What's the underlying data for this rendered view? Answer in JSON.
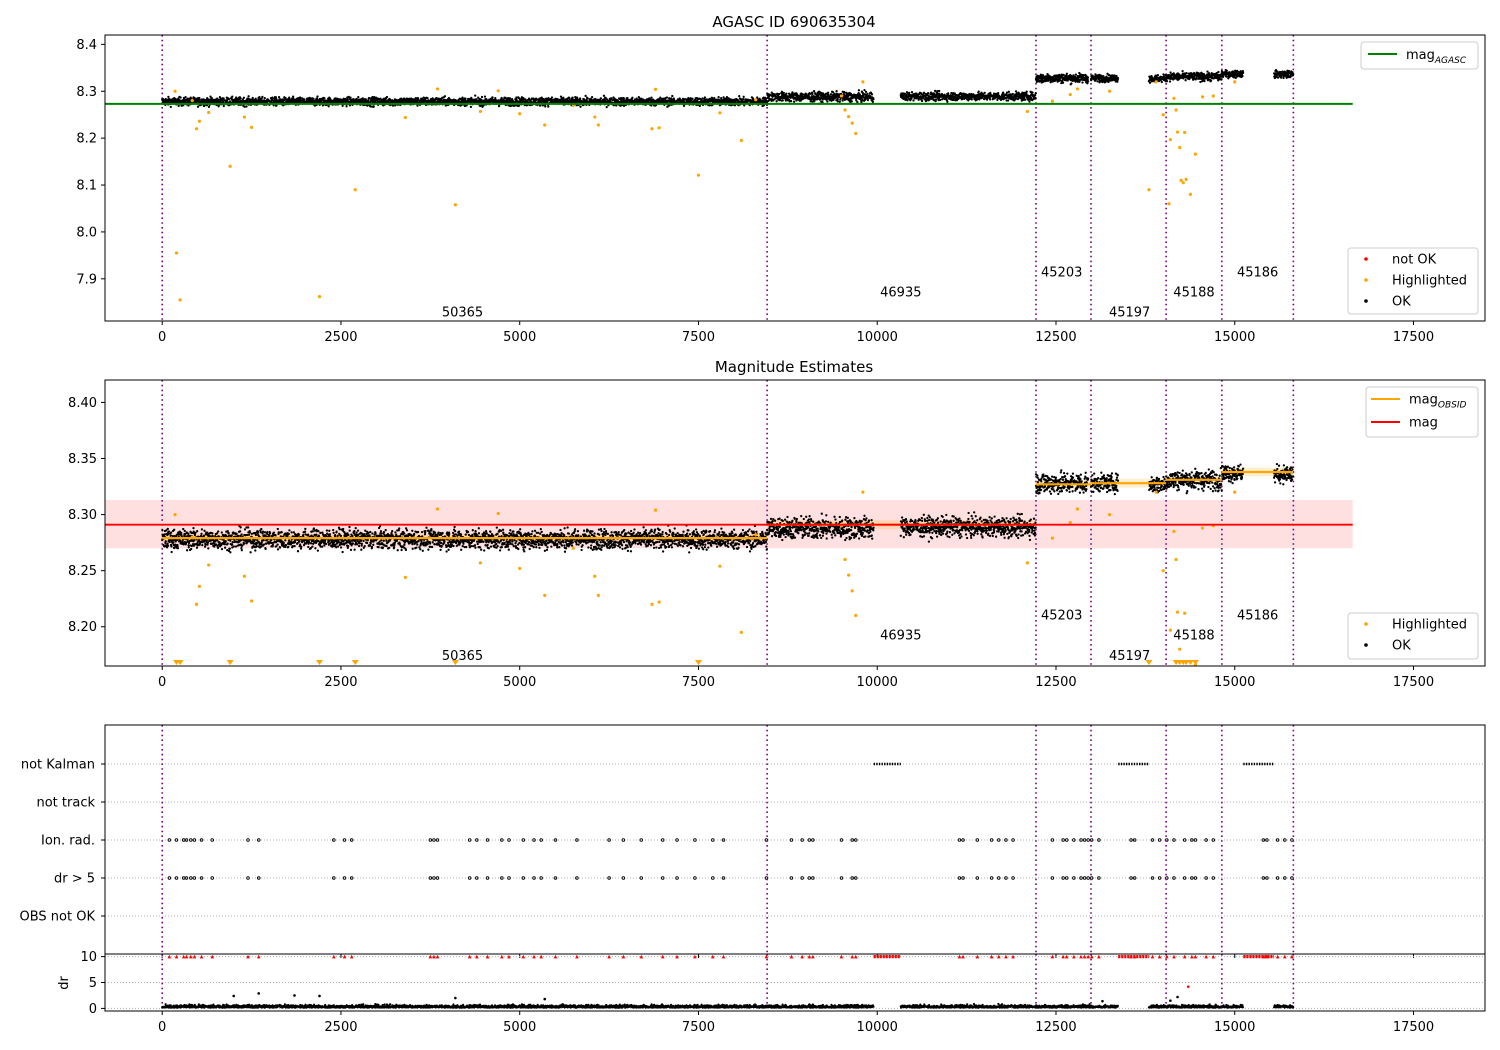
{
  "chart_data": [
    {
      "type": "scatter",
      "title": "AGASC ID 690635304",
      "xlabel": "",
      "ylabel": "",
      "xlim": [
        -800,
        18500
      ],
      "ylim": [
        7.81,
        8.42
      ],
      "xticks": [
        0,
        2500,
        5000,
        7500,
        10000,
        12500,
        15000,
        17500
      ],
      "xtick_labels": [
        "0",
        "2500",
        "5000",
        "7500",
        "10000",
        "12500",
        "15000",
        "17500"
      ],
      "yticks": [
        7.9,
        8.0,
        8.1,
        8.2,
        8.3,
        8.4
      ],
      "ytick_labels": [
        "7.9",
        "8.0",
        "8.1",
        "8.2",
        "8.3",
        "8.4"
      ],
      "vlines": [
        0,
        8460,
        12220,
        12990,
        14040,
        14820,
        15820
      ],
      "obsid_labels": [
        {
          "text": "50365",
          "x": 4200,
          "y": 7.83
        },
        {
          "text": "46935",
          "x": 10330,
          "y": 7.873
        },
        {
          "text": "45203",
          "x": 12580,
          "y": 7.916
        },
        {
          "text": "45197",
          "x": 13530,
          "y": 7.83
        },
        {
          "text": "45188",
          "x": 14430,
          "y": 7.873
        },
        {
          "text": "45186",
          "x": 15320,
          "y": 7.916
        }
      ],
      "segments": [
        {
          "x0": 0,
          "x1": 8460,
          "level": 8.278,
          "spread": 0.008
        },
        {
          "x0": 8460,
          "x1": 9950,
          "level": 8.288,
          "spread": 0.009
        },
        {
          "x0": 10330,
          "x1": 12220,
          "level": 8.289,
          "spread": 0.008
        },
        {
          "x0": 12220,
          "x1": 12950,
          "level": 8.328,
          "spread": 0.009
        },
        {
          "x0": 12990,
          "x1": 13370,
          "level": 8.328,
          "spread": 0.007
        },
        {
          "x0": 13800,
          "x1": 14040,
          "level": 8.327,
          "spread": 0.007
        },
        {
          "x0": 14040,
          "x1": 14820,
          "level": 8.331,
          "spread": 0.008
        },
        {
          "x0": 14820,
          "x1": 15120,
          "level": 8.337,
          "spread": 0.007
        },
        {
          "x0": 15550,
          "x1": 15820,
          "level": 8.336,
          "spread": 0.007
        }
      ],
      "highlighted_points": [
        [
          180,
          8.3
        ],
        [
          200,
          7.955
        ],
        [
          250,
          7.855
        ],
        [
          420,
          8.28
        ],
        [
          480,
          8.22
        ],
        [
          520,
          8.236
        ],
        [
          650,
          8.255
        ],
        [
          950,
          8.14
        ],
        [
          1150,
          8.245
        ],
        [
          1250,
          8.223
        ],
        [
          2200,
          7.862
        ],
        [
          2700,
          8.09
        ],
        [
          3400,
          8.244
        ],
        [
          3850,
          8.305
        ],
        [
          4100,
          8.058
        ],
        [
          4450,
          8.257
        ],
        [
          4700,
          8.301
        ],
        [
          5000,
          8.252
        ],
        [
          5350,
          8.228
        ],
        [
          5750,
          8.27
        ],
        [
          6050,
          8.245
        ],
        [
          6100,
          8.228
        ],
        [
          6850,
          8.22
        ],
        [
          6950,
          8.222
        ],
        [
          6900,
          8.304
        ],
        [
          7500,
          8.121
        ],
        [
          7800,
          8.254
        ],
        [
          8100,
          8.195
        ],
        [
          8300,
          8.282
        ],
        [
          9500,
          8.29
        ],
        [
          9550,
          8.26
        ],
        [
          9600,
          8.246
        ],
        [
          9650,
          8.232
        ],
        [
          9700,
          8.21
        ],
        [
          9800,
          8.32
        ],
        [
          12100,
          8.257
        ],
        [
          12450,
          8.279
        ],
        [
          12700,
          8.293
        ],
        [
          12800,
          8.305
        ],
        [
          13250,
          8.3
        ],
        [
          13800,
          8.09
        ],
        [
          13900,
          8.32
        ],
        [
          14000,
          8.25
        ],
        [
          14080,
          8.06
        ],
        [
          14100,
          8.197
        ],
        [
          14150,
          8.285
        ],
        [
          14180,
          8.26
        ],
        [
          14200,
          8.213
        ],
        [
          14230,
          8.18
        ],
        [
          14250,
          8.11
        ],
        [
          14280,
          8.105
        ],
        [
          14300,
          8.212
        ],
        [
          14320,
          8.112
        ],
        [
          14380,
          8.08
        ],
        [
          14450,
          8.166
        ],
        [
          14550,
          8.288
        ],
        [
          14700,
          8.29
        ],
        [
          15000,
          8.32
        ]
      ],
      "legend": {
        "line_entries": [
          {
            "label": "mag",
            "subscript": "AGASC",
            "color": "#008000"
          }
        ],
        "point_entries": [
          {
            "label": "not OK",
            "color": "#ff0000"
          },
          {
            "label": "Highlighted",
            "color": "#ffa500"
          },
          {
            "label": "OK",
            "color": "#000000"
          }
        ]
      },
      "reference_line": {
        "name": "mag",
        "value": 8.273,
        "x0": -800,
        "x1": 16650,
        "color": "#008000"
      }
    },
    {
      "type": "scatter",
      "title": "Magnitude Estimates",
      "xlabel": "",
      "ylabel": "",
      "xlim": [
        -800,
        18500
      ],
      "ylim": [
        8.165,
        8.42
      ],
      "xticks": [
        0,
        2500,
        5000,
        7500,
        10000,
        12500,
        15000,
        17500
      ],
      "xtick_labels": [
        "0",
        "2500",
        "5000",
        "7500",
        "10000",
        "12500",
        "15000",
        "17500"
      ],
      "yticks": [
        8.2,
        8.25,
        8.3,
        8.35,
        8.4
      ],
      "ytick_labels": [
        "8.20",
        "8.25",
        "8.30",
        "8.35",
        "8.40"
      ],
      "vlines": [
        0,
        8460,
        12220,
        12990,
        14040,
        14820,
        15820
      ],
      "obsid_labels": [
        {
          "text": "50365",
          "x": 4200,
          "y": 8.175
        },
        {
          "text": "46935",
          "x": 10330,
          "y": 8.193
        },
        {
          "text": "45203",
          "x": 12580,
          "y": 8.211
        },
        {
          "text": "45197",
          "x": 13530,
          "y": 8.175
        },
        {
          "text": "45188",
          "x": 14430,
          "y": 8.193
        },
        {
          "text": "45186",
          "x": 15320,
          "y": 8.211
        }
      ],
      "mag_band": {
        "center": 8.291,
        "low": 8.27,
        "high": 8.313,
        "x0": -800,
        "x1": 16650
      },
      "obsid_levels": [
        {
          "x0": 0,
          "x1": 8460,
          "level": 8.279
        },
        {
          "x0": 8460,
          "x1": 12220,
          "level": 8.291
        },
        {
          "x0": 12220,
          "x1": 12990,
          "level": 8.327
        },
        {
          "x0": 12990,
          "x1": 14040,
          "level": 8.328
        },
        {
          "x0": 14040,
          "x1": 14820,
          "level": 8.331
        },
        {
          "x0": 14820,
          "x1": 15820,
          "level": 8.338
        }
      ],
      "offscale_markers_x": [
        200,
        250,
        950,
        2200,
        2700,
        4100,
        7500,
        13800,
        14180,
        14230,
        14280,
        14320,
        14380,
        14450
      ],
      "legend": {
        "line_entries": [
          {
            "label": "mag",
            "subscript": "OBSID",
            "color": "#ffa500"
          },
          {
            "label": "mag",
            "subscript": "",
            "color": "#ff0000"
          }
        ],
        "point_entries": [
          {
            "label": "Highlighted",
            "color": "#ffa500"
          },
          {
            "label": "OK",
            "color": "#000000"
          }
        ]
      }
    },
    {
      "type": "scatter",
      "title": "",
      "xlabel": "",
      "ylabel": "",
      "xlim": [
        -800,
        18500
      ],
      "flag_rows": [
        "not Kalman",
        "not track",
        "Ion. rad.",
        "dr > 5",
        "OBS not OK"
      ],
      "flag_points": {
        "not Kalman": [
          [
            9950,
            10330
          ],
          [
            13370,
            13800
          ],
          [
            15120,
            15550
          ]
        ],
        "not track": [],
        "Ion. rad.": [
          100,
          200,
          300,
          340,
          400,
          450,
          550,
          700,
          1200,
          1350,
          2400,
          2550,
          2650,
          3750,
          3800,
          3850,
          4300,
          4400,
          4550,
          4750,
          4850,
          5050,
          5200,
          5300,
          5500,
          5800,
          6250,
          6450,
          6700,
          7000,
          7200,
          7450,
          7700,
          7850,
          8450,
          8800,
          8950,
          9050,
          9100,
          9500,
          9650,
          9700,
          11150,
          11200,
          11400,
          11600,
          11700,
          11800,
          11900,
          12450,
          12600,
          12650,
          12750,
          12850,
          12900,
          12950,
          13000,
          13100,
          13550,
          13600,
          13850,
          13950,
          14050,
          14150,
          14300,
          14400,
          14450,
          14600,
          14700,
          15400,
          15450,
          15600,
          15700,
          15800
        ],
        "dr > 5": [
          100,
          200,
          300,
          340,
          400,
          450,
          550,
          700,
          1200,
          1350,
          2400,
          2550,
          2650,
          3750,
          3800,
          3850,
          4300,
          4400,
          4550,
          4750,
          4850,
          5050,
          5200,
          5300,
          5500,
          5800,
          6250,
          6450,
          6700,
          7000,
          7200,
          7450,
          7700,
          7850,
          8450,
          8800,
          8950,
          9050,
          9100,
          9500,
          9650,
          9700,
          11150,
          11200,
          11400,
          11600,
          11700,
          11800,
          11900,
          12450,
          12600,
          12650,
          12750,
          12850,
          12900,
          12950,
          13000,
          13100,
          13550,
          13600,
          13850,
          13950,
          14050,
          14150,
          14300,
          14400,
          14450,
          14600,
          14700,
          15400,
          15450,
          15600,
          15700,
          15800
        ],
        "OBS not OK": []
      }
    },
    {
      "type": "scatter",
      "title": "",
      "xlabel": "",
      "ylabel": "dr",
      "xlim": [
        -800,
        18500
      ],
      "ylim": [
        -0.5,
        10.5
      ],
      "xticks": [
        0,
        2500,
        5000,
        7500,
        10000,
        12500,
        15000,
        17500
      ],
      "xtick_labels": [
        "0",
        "2500",
        "5000",
        "7500",
        "10000",
        "12500",
        "15000",
        "17500"
      ],
      "yticks": [
        0,
        5,
        10
      ],
      "ytick_labels": [
        "0",
        "5",
        "10"
      ],
      "vlines": [
        0,
        8460,
        12220,
        12990,
        14040,
        14820,
        15820
      ],
      "dr_segments": [
        [
          0,
          9950
        ],
        [
          10330,
          13370
        ],
        [
          13800,
          15120
        ],
        [
          15550,
          15820
        ]
      ],
      "dr_outliers": [
        [
          1000,
          2.4
        ],
        [
          1350,
          2.9
        ],
        [
          1850,
          2.5
        ],
        [
          2200,
          2.4
        ],
        [
          4100,
          2.0
        ],
        [
          5350,
          1.8
        ],
        [
          14100,
          1.5
        ],
        [
          14200,
          2.2
        ],
        [
          14350,
          4.2
        ],
        [
          13150,
          1.4
        ]
      ],
      "capped_x": [
        100,
        200,
        300,
        340,
        400,
        450,
        550,
        700,
        1200,
        1350,
        2400,
        2550,
        2650,
        3750,
        3800,
        3850,
        4300,
        4400,
        4550,
        4750,
        4850,
        5050,
        5200,
        5300,
        5500,
        5800,
        6250,
        6450,
        6700,
        7000,
        7200,
        7450,
        7700,
        7850,
        8450,
        8800,
        8950,
        9050,
        9100,
        9500,
        9650,
        9700,
        11150,
        11200,
        11400,
        11600,
        11700,
        11800,
        11900,
        12450,
        12600,
        12650,
        12750,
        12850,
        12900,
        12950,
        13000,
        13100,
        13550,
        13600,
        13850,
        13950,
        14050,
        14150,
        14300,
        14400,
        14450,
        14600,
        14700,
        15400,
        15450,
        15600,
        15700,
        15800
      ],
      "capped_ranges": [
        [
          9950,
          10330
        ],
        [
          13370,
          13800
        ],
        [
          15120,
          15550
        ]
      ]
    }
  ]
}
